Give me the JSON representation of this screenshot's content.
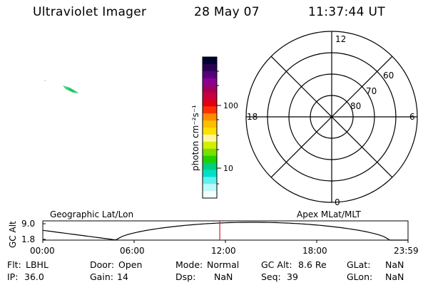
{
  "header": {
    "title": "Ultraviolet Imager",
    "date": "28 May 07",
    "time": "11:37:44 UT"
  },
  "colorbar": {
    "unit_label": "photon cm⁻²s⁻¹",
    "tick_labels": [
      "100",
      "10"
    ],
    "colors": [
      "#000033",
      "#2a0050",
      "#55007a",
      "#8a0090",
      "#a00060",
      "#c8003c",
      "#e00018",
      "#ff3000",
      "#ff8c00",
      "#ffbf00",
      "#ffe000",
      "#fff8a0",
      "#d0f000",
      "#78e000",
      "#20d000",
      "#00d080",
      "#00e0c8",
      "#60f0f0",
      "#c0f8f8",
      "#f0ffff"
    ]
  },
  "polar": {
    "mlt_labels": {
      "top": "12",
      "left": "18",
      "right": "6",
      "bottom": "0"
    },
    "lat_labels": [
      "60",
      "70",
      "80"
    ]
  },
  "timeline": {
    "left_label": "Geographic Lat/Lon",
    "right_label": "Apex MLat/MLT",
    "y_axis_label": "GC Alt",
    "y_ticks": [
      "9.0",
      "1.8"
    ],
    "x_ticks": [
      "00:00",
      "06:00",
      "12:00",
      "18:00",
      "23:59"
    ],
    "current_time_hours": 11.63,
    "cursor_color": "#d02020"
  },
  "status": {
    "row1": [
      {
        "key": "Flt:",
        "value": "LBHL"
      },
      {
        "key": "Door:",
        "value": "Open"
      },
      {
        "key": "Mode:",
        "value": "Normal"
      },
      {
        "key": "GC Alt:",
        "value": "8.6 Re"
      },
      {
        "key": "GLat:",
        "value": "NaN"
      }
    ],
    "row2": [
      {
        "key": "IP:",
        "value": "36.0"
      },
      {
        "key": "Gain:",
        "value": "14"
      },
      {
        "key": "Dsp:",
        "value": "NaN"
      },
      {
        "key": "Seq:",
        "value": "39"
      },
      {
        "key": "GLon:",
        "value": "NaN"
      }
    ]
  }
}
